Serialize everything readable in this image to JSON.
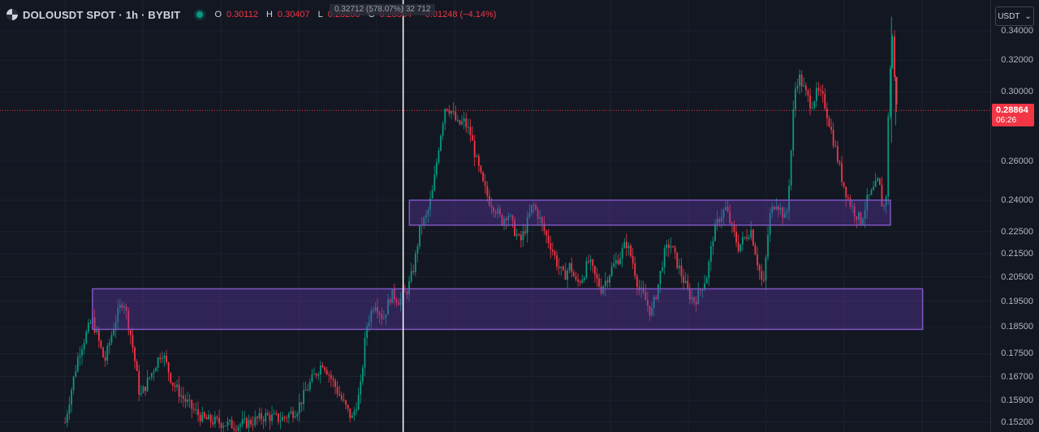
{
  "legend": {
    "symbol": "DOLOUSDT SPOT · 1h · BYBIT",
    "o_label": "O",
    "o": "0.30112",
    "h_label": "H",
    "h": "0.30407",
    "l_label": "L",
    "l": "0.28200",
    "c_label": "C",
    "c": "0.28864",
    "change": "−0.01248 (−4.14%)"
  },
  "cursor_tooltip": "0.32712 (578.07%) 32 712",
  "currency_selector": {
    "label": "USDT",
    "icon": "chevron-down-icon"
  },
  "last_price": {
    "price": "0.28864",
    "countdown": "06:26",
    "color": "#f23645"
  },
  "colors": {
    "background": "#131722",
    "up": "#089981",
    "down": "#f23645",
    "zone_fill": "rgba(103, 58, 183, 0.35)",
    "zone_border": "#7e57c2",
    "crosshair": "#ffffff"
  },
  "chart_data": {
    "type": "candlestick",
    "y_scale": "log",
    "ylim": [
      0.15,
      0.35
    ],
    "tick_labels": [
      "0.34000",
      "0.32000",
      "0.30000",
      "0.26000",
      "0.24000",
      "0.22500",
      "0.21500",
      "0.20500",
      "0.19500",
      "0.18500",
      "0.17500",
      "0.16700",
      "0.15900",
      "0.15200"
    ],
    "tick_values": [
      0.34,
      0.32,
      0.3,
      0.26,
      0.24,
      0.225,
      0.215,
      0.205,
      0.195,
      0.185,
      0.175,
      0.167,
      0.159,
      0.152
    ],
    "zones": [
      {
        "name": "upper-zone",
        "price_top": 0.24,
        "price_bottom": 0.228,
        "start_fraction": 0.394,
        "end_fraction": 0.857
      },
      {
        "name": "lower-zone",
        "price_top": 0.2,
        "price_bottom": 0.184,
        "start_fraction": 0.089,
        "end_fraction": 0.888
      }
    ],
    "crosshair_fraction": 0.388,
    "last_price": 0.28864,
    "price_path": [
      [
        0.062,
        0.152
      ],
      [
        0.075,
        0.175
      ],
      [
        0.088,
        0.188
      ],
      [
        0.1,
        0.172
      ],
      [
        0.11,
        0.187
      ],
      [
        0.118,
        0.196
      ],
      [
        0.126,
        0.18
      ],
      [
        0.134,
        0.16
      ],
      [
        0.145,
        0.168
      ],
      [
        0.155,
        0.176
      ],
      [
        0.165,
        0.165
      ],
      [
        0.175,
        0.16
      ],
      [
        0.185,
        0.156
      ],
      [
        0.195,
        0.153
      ],
      [
        0.21,
        0.152
      ],
      [
        0.225,
        0.151
      ],
      [
        0.24,
        0.152
      ],
      [
        0.255,
        0.154
      ],
      [
        0.27,
        0.153
      ],
      [
        0.285,
        0.156
      ],
      [
        0.298,
        0.165
      ],
      [
        0.31,
        0.172
      ],
      [
        0.32,
        0.165
      ],
      [
        0.33,
        0.158
      ],
      [
        0.338,
        0.153
      ],
      [
        0.346,
        0.162
      ],
      [
        0.352,
        0.185
      ],
      [
        0.36,
        0.195
      ],
      [
        0.368,
        0.188
      ],
      [
        0.376,
        0.198
      ],
      [
        0.384,
        0.195
      ],
      [
        0.392,
        0.2
      ],
      [
        0.398,
        0.21
      ],
      [
        0.404,
        0.228
      ],
      [
        0.41,
        0.232
      ],
      [
        0.416,
        0.245
      ],
      [
        0.422,
        0.27
      ],
      [
        0.428,
        0.292
      ],
      [
        0.434,
        0.288
      ],
      [
        0.44,
        0.28
      ],
      [
        0.446,
        0.282
      ],
      [
        0.452,
        0.275
      ],
      [
        0.458,
        0.26
      ],
      [
        0.464,
        0.248
      ],
      [
        0.47,
        0.24
      ],
      [
        0.476,
        0.236
      ],
      [
        0.482,
        0.23
      ],
      [
        0.488,
        0.234
      ],
      [
        0.494,
        0.226
      ],
      [
        0.5,
        0.22
      ],
      [
        0.506,
        0.228
      ],
      [
        0.512,
        0.238
      ],
      [
        0.518,
        0.232
      ],
      [
        0.524,
        0.224
      ],
      [
        0.53,
        0.218
      ],
      [
        0.536,
        0.21
      ],
      [
        0.542,
        0.205
      ],
      [
        0.548,
        0.21
      ],
      [
        0.554,
        0.202
      ],
      [
        0.56,
        0.205
      ],
      [
        0.566,
        0.212
      ],
      [
        0.572,
        0.205
      ],
      [
        0.578,
        0.2
      ],
      [
        0.584,
        0.205
      ],
      [
        0.59,
        0.21
      ],
      [
        0.596,
        0.214
      ],
      [
        0.602,
        0.22
      ],
      [
        0.608,
        0.212
      ],
      [
        0.614,
        0.2
      ],
      [
        0.62,
        0.196
      ],
      [
        0.626,
        0.19
      ],
      [
        0.632,
        0.2
      ],
      [
        0.638,
        0.214
      ],
      [
        0.644,
        0.22
      ],
      [
        0.65,
        0.212
      ],
      [
        0.656,
        0.205
      ],
      [
        0.662,
        0.198
      ],
      [
        0.668,
        0.195
      ],
      [
        0.674,
        0.2
      ],
      [
        0.68,
        0.206
      ],
      [
        0.686,
        0.224
      ],
      [
        0.692,
        0.232
      ],
      [
        0.698,
        0.236
      ],
      [
        0.704,
        0.226
      ],
      [
        0.71,
        0.218
      ],
      [
        0.716,
        0.222
      ],
      [
        0.722,
        0.226
      ],
      [
        0.728,
        0.212
      ],
      [
        0.734,
        0.2
      ],
      [
        0.74,
        0.232
      ],
      [
        0.746,
        0.24
      ],
      [
        0.752,
        0.234
      ],
      [
        0.756,
        0.23
      ],
      [
        0.76,
        0.258
      ],
      [
        0.764,
        0.3
      ],
      [
        0.768,
        0.31
      ],
      [
        0.774,
        0.3
      ],
      [
        0.78,
        0.292
      ],
      [
        0.786,
        0.3
      ],
      [
        0.792,
        0.295
      ],
      [
        0.798,
        0.28
      ],
      [
        0.804,
        0.265
      ],
      [
        0.81,
        0.25
      ],
      [
        0.816,
        0.24
      ],
      [
        0.822,
        0.234
      ],
      [
        0.828,
        0.23
      ],
      [
        0.834,
        0.24
      ],
      [
        0.84,
        0.245
      ],
      [
        0.845,
        0.25
      ],
      [
        0.849,
        0.235
      ],
      [
        0.852,
        0.24
      ],
      [
        0.855,
        0.3
      ],
      [
        0.858,
        0.34
      ],
      [
        0.86,
        0.31
      ],
      [
        0.862,
        0.295
      ],
      [
        0.864,
        0.28864
      ]
    ]
  }
}
